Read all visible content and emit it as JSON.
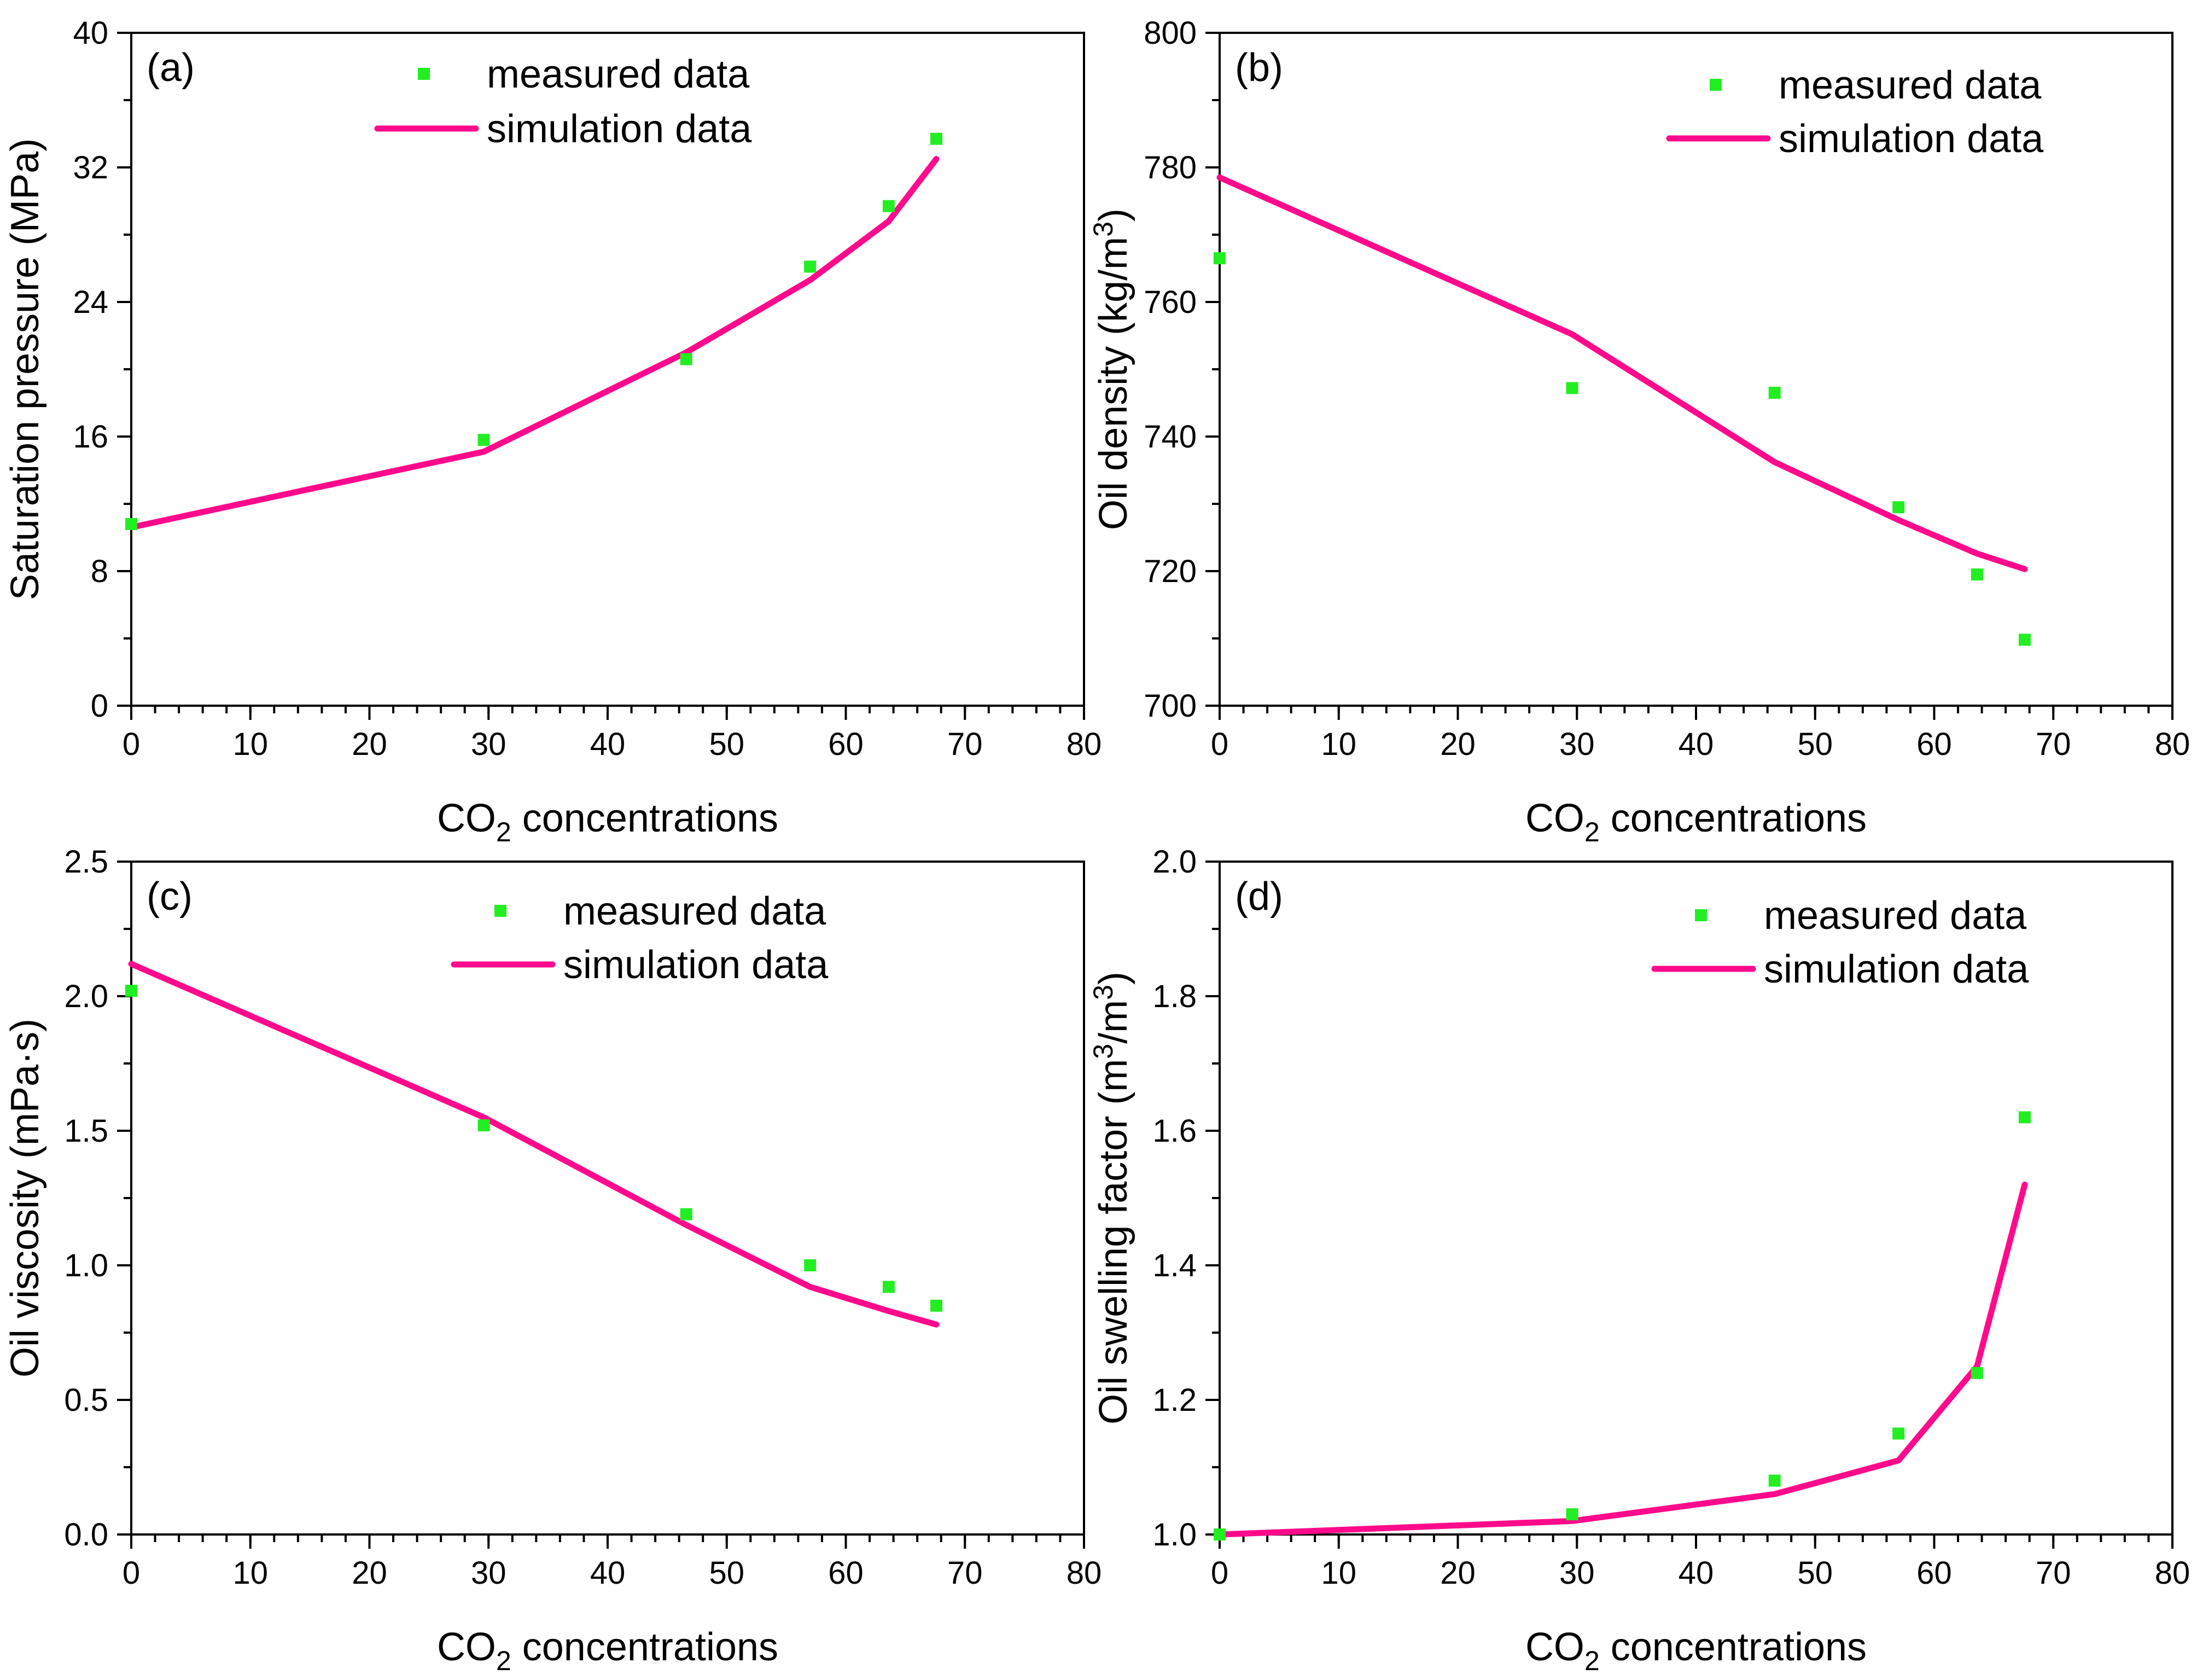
{
  "colors": {
    "measured": "#22ee22",
    "simulation": "#ff0a8c"
  },
  "chart_data": [
    {
      "type": "line",
      "panel_label": "(a)",
      "xlabel": "CO",
      "xlabel_sub": "2",
      "xlabel_rest": " concentrations",
      "ylabel": "Saturation pressure (MPa)",
      "ylabel_parts": [
        {
          "t": "Saturation pressure (MPa)"
        }
      ],
      "xlim": [
        0,
        80
      ],
      "ylim": [
        0,
        40
      ],
      "x_ticks": [
        0,
        10,
        20,
        30,
        40,
        50,
        60,
        70,
        80
      ],
      "x_tick_labels": [
        "0",
        "10",
        "20",
        "30",
        "40",
        "50",
        "60",
        "70",
        "80"
      ],
      "x_minor_step": 2,
      "y_ticks": [
        0,
        8,
        16,
        24,
        32,
        40
      ],
      "y_tick_labels": [
        "0",
        "8",
        "16",
        "24",
        "32",
        "40"
      ],
      "y_minor_step": 4,
      "legend": {
        "placement": "top-center",
        "measured_label": "measured data",
        "simulation_label": "simulation data"
      },
      "series": [
        {
          "name": "measured data",
          "kind": "scatter",
          "x": [
            0,
            29.6,
            46.6,
            57.0,
            63.6,
            67.6
          ],
          "y": [
            10.8,
            15.8,
            20.6,
            26.1,
            29.7,
            33.7
          ]
        },
        {
          "name": "simulation data",
          "kind": "line",
          "x": [
            0,
            29.6,
            46.6,
            57.0,
            63.6,
            67.6
          ],
          "y": [
            10.6,
            15.1,
            21.0,
            25.3,
            28.8,
            32.5
          ]
        }
      ]
    },
    {
      "type": "line",
      "panel_label": "(b)",
      "xlabel": "CO",
      "xlabel_sub": "2",
      "xlabel_rest": " concentrations",
      "ylabel": "Oil density (kg/m3)",
      "ylabel_parts": [
        {
          "t": "Oil density (kg/m"
        },
        {
          "t": "3",
          "sup": true
        },
        {
          "t": ")"
        }
      ],
      "xlim": [
        0,
        80
      ],
      "ylim": [
        700,
        800
      ],
      "x_ticks": [
        0,
        10,
        20,
        30,
        40,
        50,
        60,
        70,
        80
      ],
      "x_tick_labels": [
        "0",
        "10",
        "20",
        "30",
        "40",
        "50",
        "60",
        "70",
        "80"
      ],
      "x_minor_step": 2,
      "y_ticks": [
        700,
        720,
        740,
        760,
        780,
        800
      ],
      "y_tick_labels": [
        "700",
        "720",
        "740",
        "760",
        "780",
        "800"
      ],
      "y_minor_step": 10,
      "legend": {
        "placement": "top-right",
        "measured_label": "measured data",
        "simulation_label": "simulation data"
      },
      "series": [
        {
          "name": "measured data",
          "kind": "scatter",
          "x": [
            0,
            29.6,
            46.6,
            57.0,
            63.6,
            67.6
          ],
          "y": [
            766.5,
            747.2,
            746.5,
            729.5,
            719.5,
            709.8
          ]
        },
        {
          "name": "simulation data",
          "kind": "line",
          "x": [
            0,
            29.6,
            46.6,
            57.0,
            63.6,
            67.6
          ],
          "y": [
            778.5,
            755.2,
            736.2,
            727.6,
            722.6,
            720.3
          ]
        }
      ]
    },
    {
      "type": "line",
      "panel_label": "(c)",
      "xlabel": "CO",
      "xlabel_sub": "2",
      "xlabel_rest": " concentrations",
      "ylabel": "Oil viscosity (mPa·s)",
      "ylabel_parts": [
        {
          "t": "Oil viscosity (mPa·s)"
        }
      ],
      "xlim": [
        0,
        80
      ],
      "ylim": [
        0,
        2.5
      ],
      "x_ticks": [
        0,
        10,
        20,
        30,
        40,
        50,
        60,
        70,
        80
      ],
      "x_tick_labels": [
        "0",
        "10",
        "20",
        "30",
        "40",
        "50",
        "60",
        "70",
        "80"
      ],
      "x_minor_step": 2,
      "y_ticks": [
        0,
        0.5,
        1.0,
        1.5,
        2.0,
        2.5
      ],
      "y_tick_labels": [
        "0.0",
        "0.5",
        "1.0",
        "1.5",
        "2.0",
        "2.5"
      ],
      "y_minor_step": 0.25,
      "legend": {
        "placement": "top-center",
        "measured_label": "measured data",
        "simulation_label": "simulation data"
      },
      "series": [
        {
          "name": "measured data",
          "kind": "scatter",
          "x": [
            0,
            29.6,
            46.6,
            57.0,
            63.6,
            67.6
          ],
          "y": [
            2.02,
            1.52,
            1.19,
            1.0,
            0.92,
            0.85
          ]
        },
        {
          "name": "simulation data",
          "kind": "line",
          "x": [
            0,
            29.6,
            46.6,
            57.0,
            63.6,
            67.6
          ],
          "y": [
            2.12,
            1.55,
            1.15,
            0.92,
            0.83,
            0.78
          ]
        }
      ]
    },
    {
      "type": "line",
      "panel_label": "(d)",
      "xlabel": "CO",
      "xlabel_sub": "2",
      "xlabel_rest": " concentrations",
      "ylabel": "Oil swelling factor (m3/m3)",
      "ylabel_parts": [
        {
          "t": "Oil swelling factor (m"
        },
        {
          "t": "3",
          "sup": true
        },
        {
          "t": "/m"
        },
        {
          "t": "3",
          "sup": true
        },
        {
          "t": ")"
        }
      ],
      "xlim": [
        0,
        80
      ],
      "ylim": [
        1.0,
        2.0
      ],
      "x_ticks": [
        0,
        10,
        20,
        30,
        40,
        50,
        60,
        70,
        80
      ],
      "x_tick_labels": [
        "0",
        "10",
        "20",
        "30",
        "40",
        "50",
        "60",
        "70",
        "80"
      ],
      "x_minor_step": 2,
      "y_ticks": [
        1.0,
        1.2,
        1.4,
        1.6,
        1.8,
        2.0
      ],
      "y_tick_labels": [
        "1.0",
        "1.2",
        "1.4",
        "1.6",
        "1.8",
        "2.0"
      ],
      "y_minor_step": 0.1,
      "legend": {
        "placement": "top-right",
        "measured_label": "measured data",
        "simulation_label": "simulation data"
      },
      "series": [
        {
          "name": "measured data",
          "kind": "scatter",
          "x": [
            0,
            29.6,
            46.6,
            57.0,
            63.6,
            67.6
          ],
          "y": [
            1.0,
            1.03,
            1.08,
            1.15,
            1.24,
            1.62
          ]
        },
        {
          "name": "simulation data",
          "kind": "line",
          "x": [
            0,
            29.6,
            46.6,
            57.0,
            63.6,
            67.6
          ],
          "y": [
            1.0,
            1.02,
            1.06,
            1.11,
            1.25,
            1.52
          ]
        }
      ]
    }
  ]
}
